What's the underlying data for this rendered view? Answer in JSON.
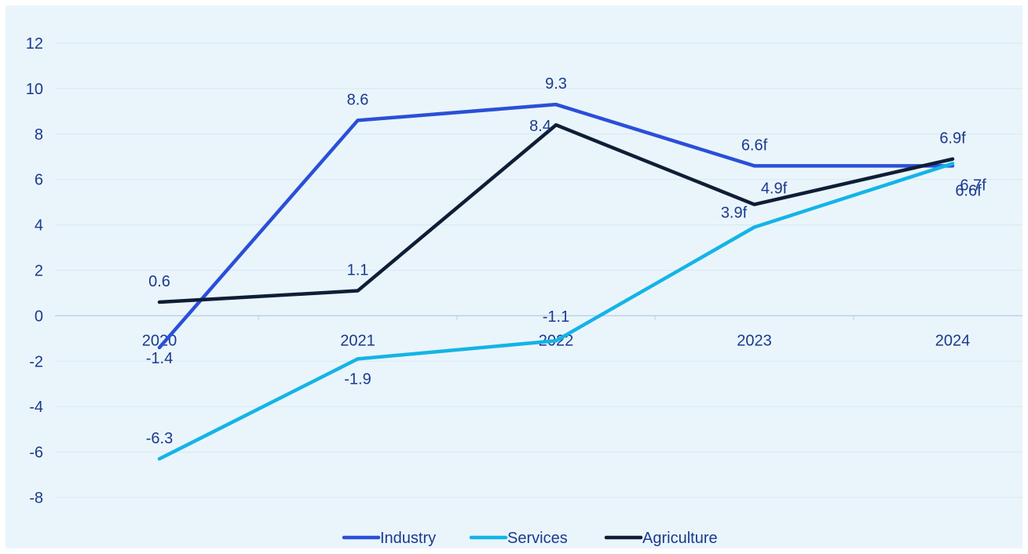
{
  "chart_data": {
    "type": "line",
    "categories": [
      "2020",
      "2021",
      "2022",
      "2023",
      "2024"
    ],
    "series": [
      {
        "name": "Industry",
        "color": "#2b4fd8",
        "values": [
          -1.4,
          8.6,
          9.3,
          6.6,
          6.6
        ],
        "labels": [
          "-1.4",
          "8.6",
          "9.3",
          "6.6f",
          "6.6f"
        ]
      },
      {
        "name": "Services",
        "color": "#14b4e6",
        "values": [
          -6.3,
          -1.9,
          -1.1,
          3.9,
          6.7
        ],
        "labels": [
          "-6.3",
          "-1.9",
          "-1.1",
          "3.9f",
          "6.7f"
        ]
      },
      {
        "name": "Agriculture",
        "color": "#0f1e36",
        "values": [
          0.6,
          1.1,
          8.4,
          4.9,
          6.9
        ],
        "labels": [
          "0.6",
          "1.1",
          "8.4",
          "4.9f",
          "6.9f"
        ]
      }
    ],
    "ylim": [
      -8,
      12
    ],
    "yticks": [
      "-8",
      "-6",
      "-4",
      "-2",
      "0",
      "2",
      "4",
      "6",
      "8",
      "10",
      "12"
    ],
    "grid": true,
    "legend": "bottom"
  }
}
